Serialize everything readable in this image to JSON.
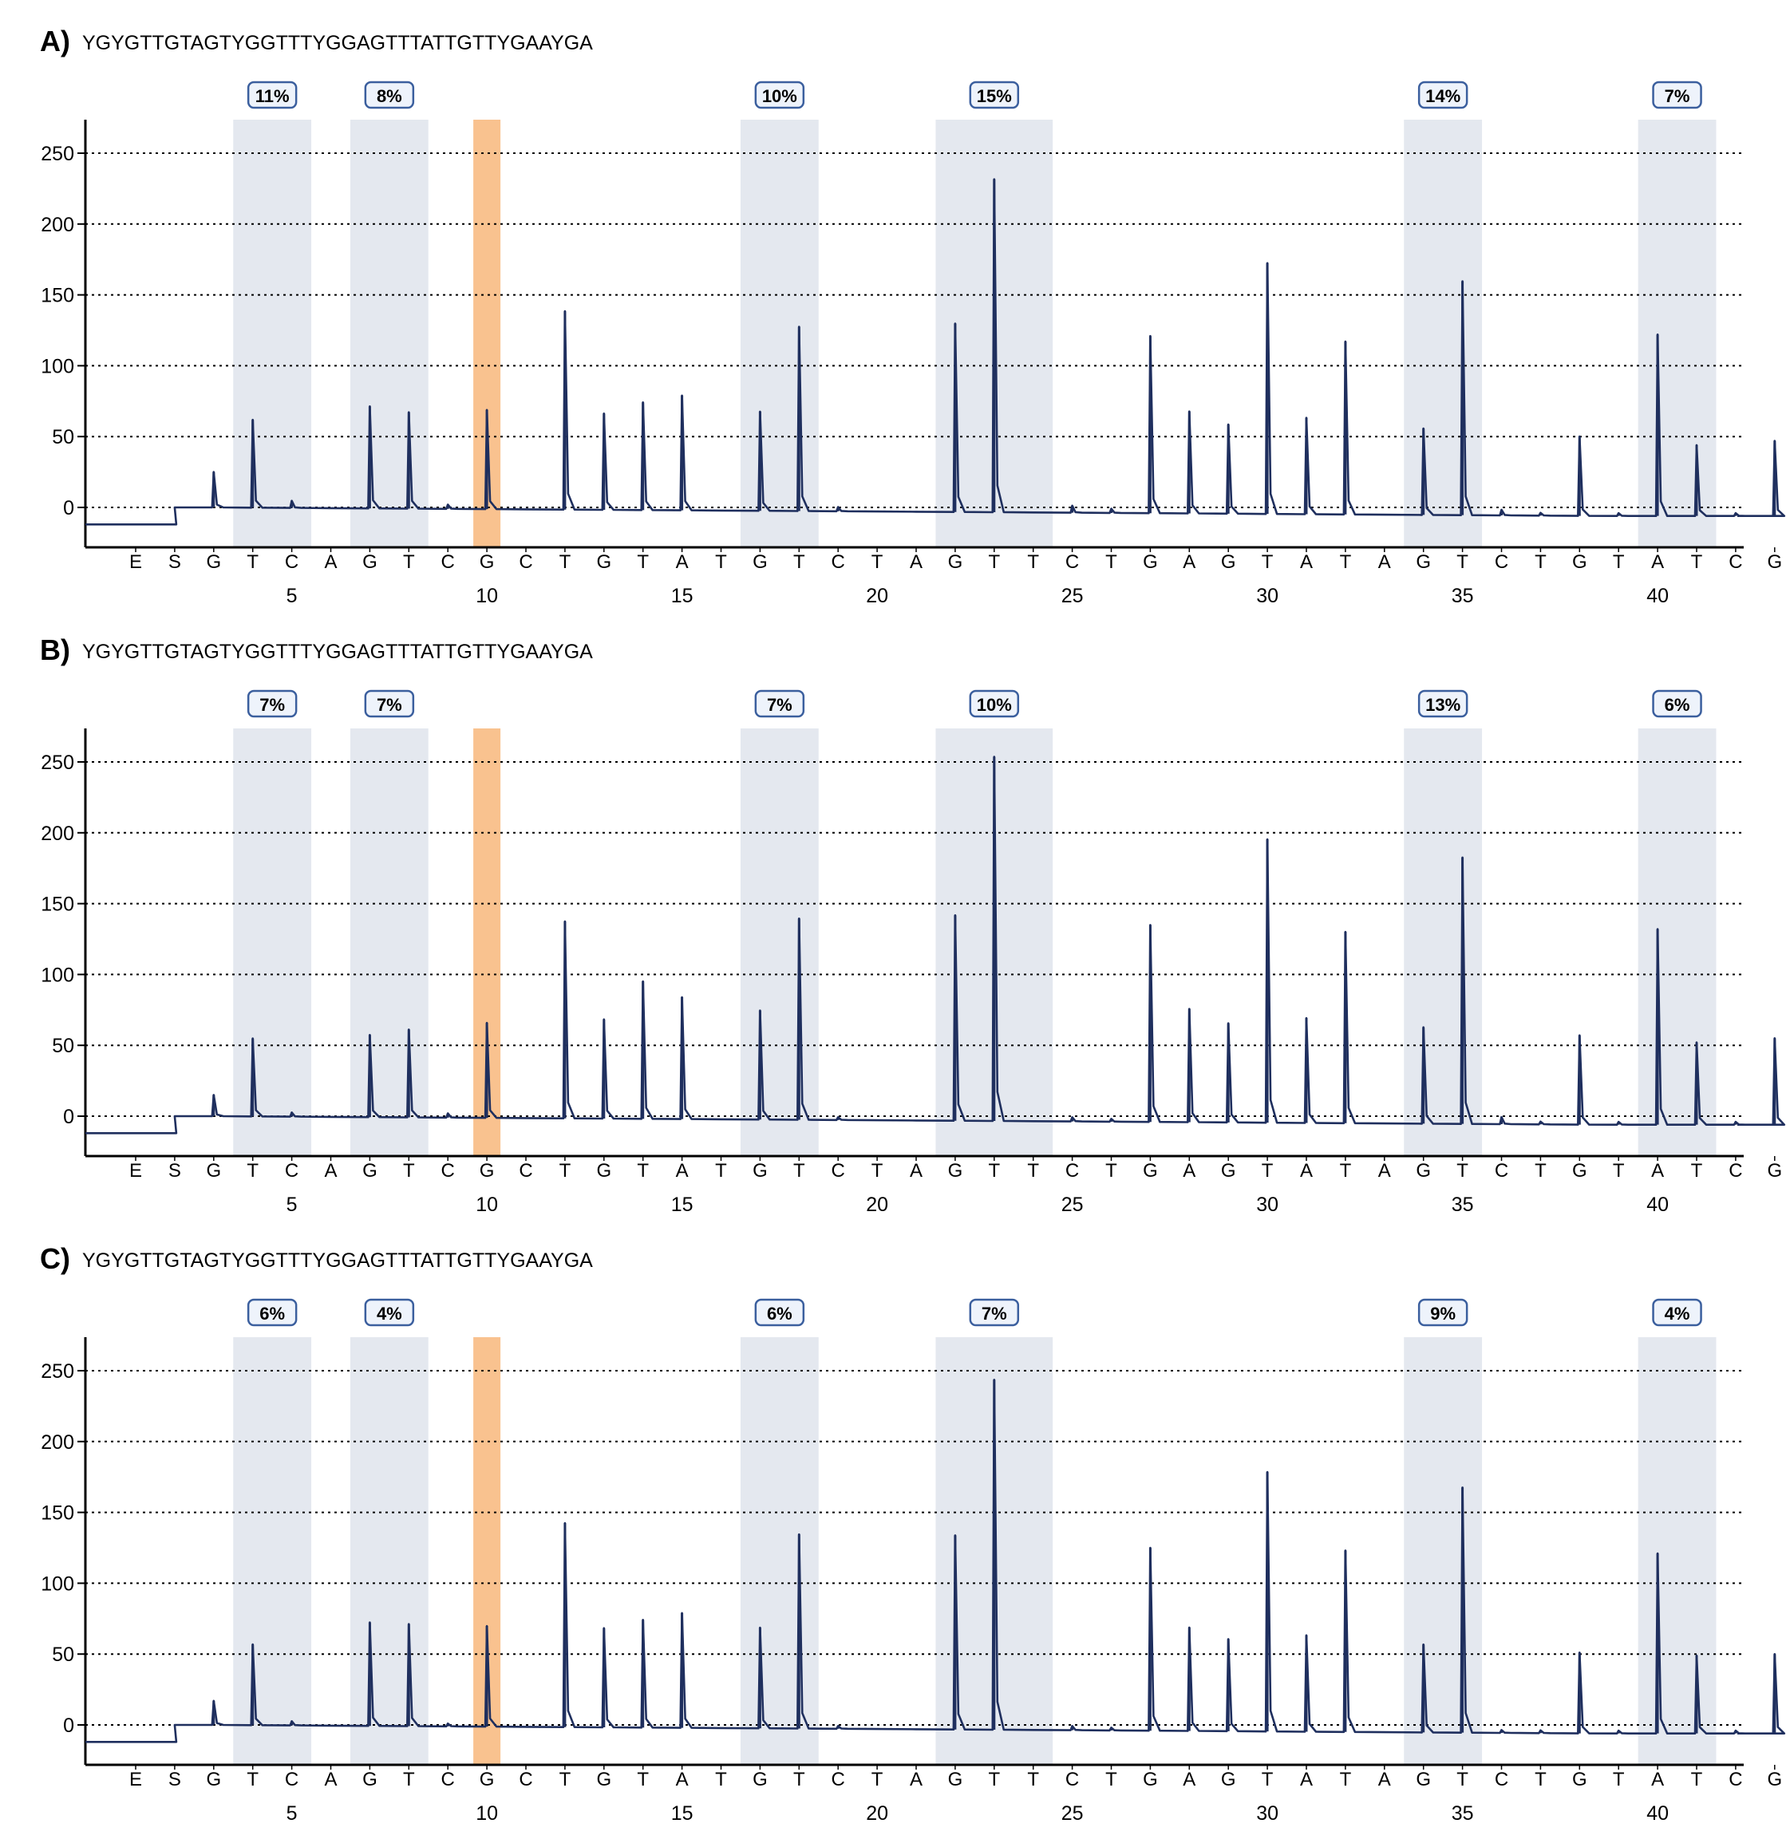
{
  "colors": {
    "trace": "#1f2f5e",
    "cpg_shade": "#e4e8ef",
    "control_shade": "#f9c28f",
    "badge_border": "#3b5f9e",
    "badge_fill": "#eef3fb",
    "axis": "#000000",
    "grid": "#000000"
  },
  "chart_data": [
    {
      "type": "line",
      "panel_label": "A)",
      "sequence": "YGYGTTGTAGTYGGTTTYGGAGTTTATTGTTYGAAYGA",
      "dispensation": [
        "E",
        "S",
        "G",
        "T",
        "C",
        "A",
        "G",
        "T",
        "C",
        "G",
        "C",
        "T",
        "G",
        "T",
        "A",
        "T",
        "G",
        "T",
        "C",
        "T",
        "A",
        "G",
        "T",
        "T",
        "C",
        "T",
        "G",
        "A",
        "G",
        "T",
        "A",
        "T",
        "A",
        "G",
        "T",
        "C",
        "T",
        "G",
        "T",
        "A",
        "T",
        "C",
        "G"
      ],
      "xticks": [
        5,
        10,
        15,
        20,
        25,
        30,
        35,
        40
      ],
      "yticks": [
        0,
        50,
        100,
        150,
        200,
        250
      ],
      "ylim": [
        -25,
        275
      ],
      "cpg_regions": [
        {
          "from": 3,
          "to": 4,
          "label": "11%"
        },
        {
          "from": 6,
          "to": 7,
          "label": "8%"
        },
        {
          "from": 16,
          "to": 17,
          "label": "10%"
        },
        {
          "from": 21,
          "to": 23,
          "label": "15%"
        },
        {
          "from": 33,
          "to": 34,
          "label": "14%"
        },
        {
          "from": 39,
          "to": 40,
          "label": "7%"
        }
      ],
      "control_position": 9,
      "peaks": [
        [
          2,
          25
        ],
        [
          3,
          62
        ],
        [
          4,
          5
        ],
        [
          6,
          72
        ],
        [
          7,
          68
        ],
        [
          8,
          3
        ],
        [
          9,
          70
        ],
        [
          11,
          140
        ],
        [
          12,
          68
        ],
        [
          13,
          76
        ],
        [
          14,
          81
        ],
        [
          16,
          70
        ],
        [
          17,
          130
        ],
        [
          18,
          3
        ],
        [
          21,
          133
        ],
        [
          22,
          235
        ],
        [
          24,
          5
        ],
        [
          25,
          3
        ],
        [
          26,
          125
        ],
        [
          27,
          72
        ],
        [
          28,
          63
        ],
        [
          29,
          177
        ],
        [
          30,
          68
        ],
        [
          31,
          122
        ],
        [
          33,
          61
        ],
        [
          34,
          165
        ],
        [
          35,
          4
        ],
        [
          36,
          2
        ],
        [
          37,
          56
        ],
        [
          38,
          2
        ],
        [
          39,
          128
        ],
        [
          40,
          50
        ],
        [
          41,
          2
        ],
        [
          42,
          53
        ]
      ]
    },
    {
      "type": "line",
      "panel_label": "B)",
      "sequence": "YGYGTTGTAGTYGGTTTYGGAGTTTATTGTTYGAAYGA",
      "dispensation": [
        "E",
        "S",
        "G",
        "T",
        "C",
        "A",
        "G",
        "T",
        "C",
        "G",
        "C",
        "T",
        "G",
        "T",
        "A",
        "T",
        "G",
        "T",
        "C",
        "T",
        "A",
        "G",
        "T",
        "T",
        "C",
        "T",
        "G",
        "A",
        "G",
        "T",
        "A",
        "T",
        "A",
        "G",
        "T",
        "C",
        "T",
        "G",
        "T",
        "A",
        "T",
        "C",
        "G"
      ],
      "xticks": [
        5,
        10,
        15,
        20,
        25,
        30,
        35,
        40
      ],
      "yticks": [
        0,
        50,
        100,
        150,
        200,
        250
      ],
      "ylim": [
        -25,
        275
      ],
      "cpg_regions": [
        {
          "from": 3,
          "to": 4,
          "label": "7%"
        },
        {
          "from": 6,
          "to": 7,
          "label": "7%"
        },
        {
          "from": 16,
          "to": 17,
          "label": "7%"
        },
        {
          "from": 21,
          "to": 23,
          "label": "10%"
        },
        {
          "from": 33,
          "to": 34,
          "label": "13%"
        },
        {
          "from": 39,
          "to": 40,
          "label": "6%"
        }
      ],
      "control_position": 9,
      "peaks": [
        [
          2,
          15
        ],
        [
          3,
          55
        ],
        [
          4,
          3
        ],
        [
          6,
          58
        ],
        [
          7,
          62
        ],
        [
          8,
          3
        ],
        [
          9,
          67
        ],
        [
          11,
          139
        ],
        [
          12,
          70
        ],
        [
          13,
          97
        ],
        [
          14,
          86
        ],
        [
          16,
          77
        ],
        [
          17,
          142
        ],
        [
          18,
          2
        ],
        [
          21,
          145
        ],
        [
          22,
          257
        ],
        [
          24,
          3
        ],
        [
          25,
          2
        ],
        [
          26,
          139
        ],
        [
          27,
          80
        ],
        [
          28,
          70
        ],
        [
          29,
          200
        ],
        [
          30,
          74
        ],
        [
          31,
          135
        ],
        [
          33,
          68
        ],
        [
          34,
          188
        ],
        [
          35,
          5
        ],
        [
          36,
          2
        ],
        [
          37,
          63
        ],
        [
          38,
          2
        ],
        [
          39,
          138
        ],
        [
          40,
          58
        ],
        [
          41,
          2
        ],
        [
          42,
          61
        ]
      ]
    },
    {
      "type": "line",
      "panel_label": "C)",
      "sequence": "YGYGTTGTAGTYGGTTTYGGAGTTTATTGTTYGAAYGA",
      "dispensation": [
        "E",
        "S",
        "G",
        "T",
        "C",
        "A",
        "G",
        "T",
        "C",
        "G",
        "C",
        "T",
        "G",
        "T",
        "A",
        "T",
        "G",
        "T",
        "C",
        "T",
        "A",
        "G",
        "T",
        "T",
        "C",
        "T",
        "G",
        "A",
        "G",
        "T",
        "A",
        "T",
        "A",
        "G",
        "T",
        "C",
        "T",
        "G",
        "T",
        "A",
        "T",
        "C",
        "G"
      ],
      "xticks": [
        5,
        10,
        15,
        20,
        25,
        30,
        35,
        40
      ],
      "yticks": [
        0,
        50,
        100,
        150,
        200,
        250
      ],
      "ylim": [
        -25,
        275
      ],
      "cpg_regions": [
        {
          "from": 3,
          "to": 4,
          "label": "6%"
        },
        {
          "from": 6,
          "to": 7,
          "label": "4%"
        },
        {
          "from": 16,
          "to": 17,
          "label": "6%"
        },
        {
          "from": 21,
          "to": 23,
          "label": "7%"
        },
        {
          "from": 33,
          "to": 34,
          "label": "9%"
        },
        {
          "from": 39,
          "to": 40,
          "label": "4%"
        }
      ],
      "control_position": 9,
      "peaks": [
        [
          2,
          17
        ],
        [
          3,
          57
        ],
        [
          4,
          3
        ],
        [
          6,
          73
        ],
        [
          7,
          72
        ],
        [
          8,
          2
        ],
        [
          9,
          71
        ],
        [
          11,
          144
        ],
        [
          12,
          70
        ],
        [
          13,
          76
        ],
        [
          14,
          81
        ],
        [
          16,
          71
        ],
        [
          17,
          137
        ],
        [
          18,
          2
        ],
        [
          21,
          137
        ],
        [
          22,
          247
        ],
        [
          24,
          3
        ],
        [
          25,
          2
        ],
        [
          26,
          129
        ],
        [
          27,
          73
        ],
        [
          28,
          65
        ],
        [
          29,
          183
        ],
        [
          30,
          68
        ],
        [
          31,
          128
        ],
        [
          33,
          62
        ],
        [
          34,
          173
        ],
        [
          35,
          2
        ],
        [
          36,
          2
        ],
        [
          37,
          57
        ],
        [
          38,
          2
        ],
        [
          39,
          127
        ],
        [
          40,
          55
        ],
        [
          41,
          2
        ],
        [
          42,
          56
        ]
      ]
    }
  ]
}
